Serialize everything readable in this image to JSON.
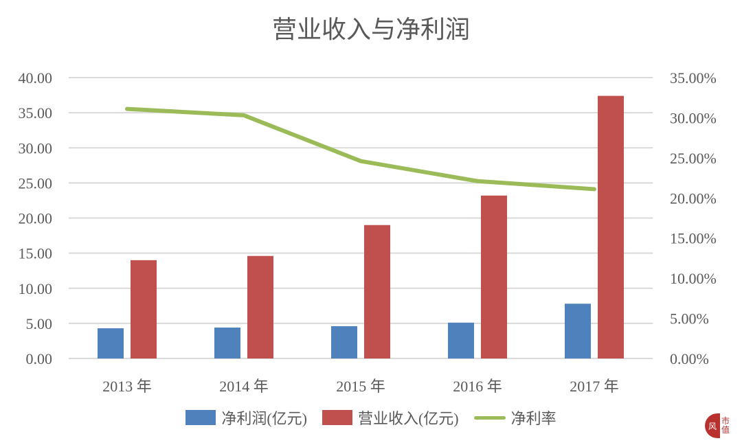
{
  "chart_data": {
    "type": "bar",
    "title": "营业收入与净利润",
    "categories": [
      "2013 年",
      "2014 年",
      "2015 年",
      "2016 年",
      "2017 年"
    ],
    "series": [
      {
        "name": "净利润(亿元)",
        "type": "bar",
        "axis": "left",
        "color": "#4f81bd",
        "values": [
          4.3,
          4.4,
          4.6,
          5.1,
          7.8
        ]
      },
      {
        "name": "营业收入(亿元)",
        "type": "bar",
        "axis": "left",
        "color": "#c0504d",
        "values": [
          14.0,
          14.6,
          19.0,
          23.2,
          37.4
        ]
      },
      {
        "name": "净利率",
        "type": "line",
        "axis": "right",
        "color": "#9bbb59",
        "values": [
          0.311,
          0.303,
          0.246,
          0.221,
          0.211
        ]
      }
    ],
    "left_axis": {
      "min": 0,
      "max": 40,
      "step": 5,
      "ticks": [
        "0.00",
        "5.00",
        "10.00",
        "15.00",
        "20.00",
        "25.00",
        "30.00",
        "35.00",
        "40.00"
      ]
    },
    "right_axis": {
      "min": 0,
      "max": 0.35,
      "step": 0.05,
      "ticks": [
        "0.00%",
        "5.00%",
        "10.00%",
        "15.00%",
        "20.00%",
        "25.00%",
        "30.00%",
        "35.00%"
      ]
    },
    "xlabel": "",
    "ylabel": "",
    "grid": true,
    "legend_position": "bottom"
  },
  "legend": {
    "items": [
      {
        "label": "净利润(亿元)",
        "color": "#4f81bd",
        "kind": "bar"
      },
      {
        "label": "营业收入(亿元)",
        "color": "#c0504d",
        "kind": "bar"
      },
      {
        "label": "净利率",
        "color": "#9bbb59",
        "kind": "line"
      }
    ]
  },
  "logo": {
    "glyph": "风",
    "text": "市值"
  }
}
